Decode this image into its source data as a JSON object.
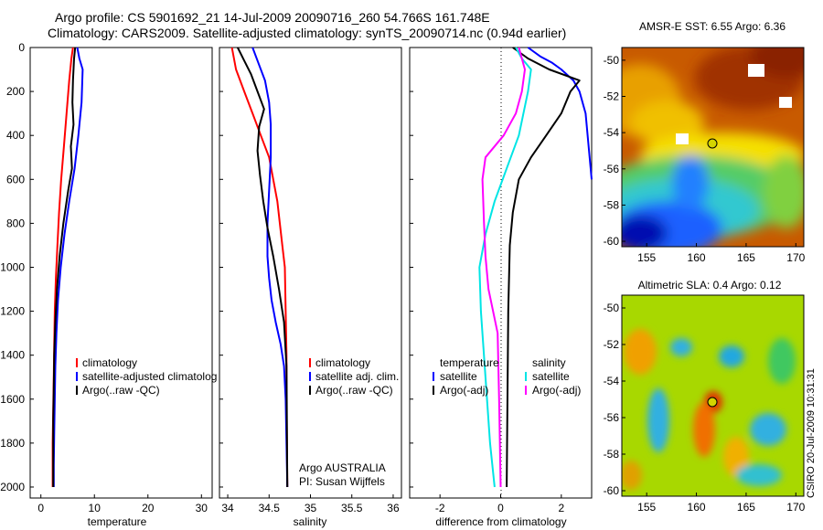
{
  "header": {
    "title_line1": "Argo profile: CS 5901692_21 14-Jul-2009 20090716_260 54.766S 161.748E",
    "title_line2": "Climatology: CARS2009. Satellite-adjusted climatology: synTS_20090714.nc (0.94d earlier)"
  },
  "colors": {
    "climatology": "#ff0000",
    "satellite": "#0000ff",
    "argo": "#000000",
    "temp_diff": "#00e5e5",
    "sal_diff": "#ff00ff"
  },
  "panels": {
    "temperature": {
      "xlabel": "temperature",
      "xticks": [
        "0",
        "10",
        "20",
        "30"
      ]
    },
    "salinity": {
      "xlabel": "salinity",
      "xticks": [
        "34",
        "34.5",
        "35",
        "35.5",
        "36"
      ]
    },
    "difference": {
      "xlabel": "difference from climatology",
      "xticks": [
        "-2",
        "0",
        "2"
      ]
    }
  },
  "depth_ticks": [
    "0",
    "200",
    "400",
    "600",
    "800",
    "1000",
    "1200",
    "1400",
    "1600",
    "1800",
    "2000"
  ],
  "legend_temperature": [
    "climatology",
    "satellite-adjusted climatolog",
    "Argo(..raw -QC)"
  ],
  "legend_salinity": [
    "climatology",
    "satellite adj. clim.",
    "Argo(..raw -QC)"
  ],
  "legend_difference": {
    "head_temp": "temperature",
    "head_sal": "salinity",
    "temp_items": [
      "satellite",
      "Argo(-adj)"
    ],
    "sal_items": [
      "satellite",
      "Argo(-adj)"
    ]
  },
  "annotation": {
    "line1": "Argo AUSTRALIA",
    "line2": "PI: Susan Wijffels"
  },
  "map_sst": {
    "title": "AMSR-E SST: 6.55 Argo: 6.36",
    "yticks": [
      "-50",
      "-52",
      "-54",
      "-56",
      "-58",
      "-60"
    ],
    "xticks": [
      "155",
      "160",
      "165",
      "170"
    ]
  },
  "map_sla": {
    "title": "Altimetric SLA: 0.4 Argo: 0.12",
    "yticks": [
      "-50",
      "-52",
      "-54",
      "-56",
      "-58",
      "-60"
    ],
    "xticks": [
      "155",
      "160",
      "165",
      "170"
    ]
  },
  "credit": "CSIRO 20-Jul-2009 10:31:31",
  "chart_data": [
    {
      "type": "line",
      "xlabel": "temperature",
      "ylabel": "",
      "xlim": [
        -2,
        32
      ],
      "ylim": [
        2050,
        0
      ],
      "series": [
        {
          "name": "climatology",
          "x": [
            6.0,
            5.7,
            5.3,
            4.8,
            4.3,
            3.8,
            3.4,
            3.1,
            2.8,
            2.6,
            2.5,
            2.4,
            2.3,
            2.2,
            2.2,
            2.2
          ],
          "y": [
            0,
            50,
            150,
            300,
            450,
            600,
            750,
            900,
            1050,
            1200,
            1350,
            1500,
            1650,
            1800,
            1950,
            2000
          ]
        },
        {
          "name": "satellite-adjusted climatolog",
          "x": [
            6.8,
            7.2,
            7.8,
            7.6,
            7.0,
            6.3,
            5.3,
            4.4,
            3.7,
            3.2,
            2.9,
            2.7,
            2.6,
            2.5,
            2.4,
            2.4
          ],
          "y": [
            0,
            50,
            100,
            250,
            400,
            550,
            700,
            850,
            1000,
            1150,
            1300,
            1450,
            1600,
            1750,
            1900,
            2000
          ]
        },
        {
          "name": "Argo(..raw -QC)",
          "x": [
            6.4,
            6.2,
            6.0,
            5.9,
            6.1,
            5.6,
            5.8,
            5.1,
            4.2,
            3.5,
            3.0,
            2.7,
            2.5,
            2.4,
            2.3,
            2.3
          ],
          "y": [
            0,
            50,
            150,
            250,
            350,
            450,
            550,
            650,
            800,
            950,
            1100,
            1250,
            1400,
            1550,
            1700,
            2000
          ]
        }
      ]
    },
    {
      "type": "line",
      "xlabel": "salinity",
      "ylabel": "",
      "xlim": [
        33.9,
        36.1
      ],
      "ylim": [
        2050,
        0
      ],
      "series": [
        {
          "name": "climatology",
          "x": [
            34.05,
            34.1,
            34.2,
            34.3,
            34.4,
            34.5,
            34.55,
            34.6,
            34.63,
            34.66,
            34.69,
            34.7,
            34.71,
            34.71,
            34.72
          ],
          "y": [
            0,
            100,
            200,
            300,
            400,
            500,
            600,
            700,
            800,
            900,
            1000,
            1200,
            1400,
            1600,
            2000
          ]
        },
        {
          "name": "satellite adj. clim.",
          "x": [
            34.3,
            34.38,
            34.45,
            34.5,
            34.52,
            34.52,
            34.5,
            34.48,
            34.48,
            34.5,
            34.53,
            34.58,
            34.64,
            34.68,
            34.7,
            34.72
          ],
          "y": [
            0,
            80,
            150,
            250,
            350,
            500,
            650,
            800,
            950,
            1050,
            1150,
            1250,
            1350,
            1450,
            1600,
            2000
          ]
        },
        {
          "name": "Argo(..raw -QC)",
          "x": [
            34.12,
            34.2,
            34.28,
            34.36,
            34.44,
            34.38,
            34.36,
            34.39,
            34.43,
            34.48,
            34.55,
            34.62,
            34.68,
            34.71,
            34.72
          ],
          "y": [
            0,
            60,
            120,
            200,
            280,
            360,
            470,
            580,
            700,
            820,
            950,
            1100,
            1250,
            1450,
            2000
          ]
        }
      ]
    },
    {
      "type": "line",
      "xlabel": "difference from climatology",
      "ylabel": "",
      "xlim": [
        -3,
        3
      ],
      "ylim": [
        2050,
        0
      ],
      "series": [
        {
          "name": "temperature satellite",
          "x": [
            0.9,
            1.3,
            1.7,
            2.0,
            2.4,
            2.6,
            2.8,
            3.0
          ],
          "y": [
            0,
            40,
            70,
            100,
            150,
            200,
            300,
            600
          ]
        },
        {
          "name": "temperature Argo(-adj)",
          "x": [
            0.4,
            0.9,
            1.6,
            2.6,
            2.3,
            2.0,
            1.5,
            1.0,
            0.6,
            0.4,
            0.3,
            0.25,
            0.2
          ],
          "y": [
            0,
            50,
            100,
            150,
            200,
            300,
            400,
            500,
            600,
            750,
            900,
            1200,
            2000
          ]
        },
        {
          "name": "salinity satellite",
          "x": [
            0.5,
            0.7,
            1.0,
            0.9,
            0.6,
            0.2,
            -0.2,
            -0.5,
            -0.7,
            -0.65,
            -0.5,
            -0.35,
            -0.2
          ],
          "y": [
            0,
            50,
            100,
            200,
            400,
            550,
            700,
            850,
            1000,
            1200,
            1500,
            1800,
            2000
          ]
        },
        {
          "name": "salinity Argo(-adj)",
          "x": [
            0.6,
            0.8,
            0.7,
            0.5,
            0.1,
            -0.5,
            -0.6,
            -0.55,
            -0.5,
            -0.4,
            -0.1,
            -0.05,
            0.0
          ],
          "y": [
            0,
            100,
            200,
            300,
            400,
            500,
            600,
            800,
            950,
            1100,
            1300,
            1600,
            2000
          ]
        }
      ]
    }
  ]
}
